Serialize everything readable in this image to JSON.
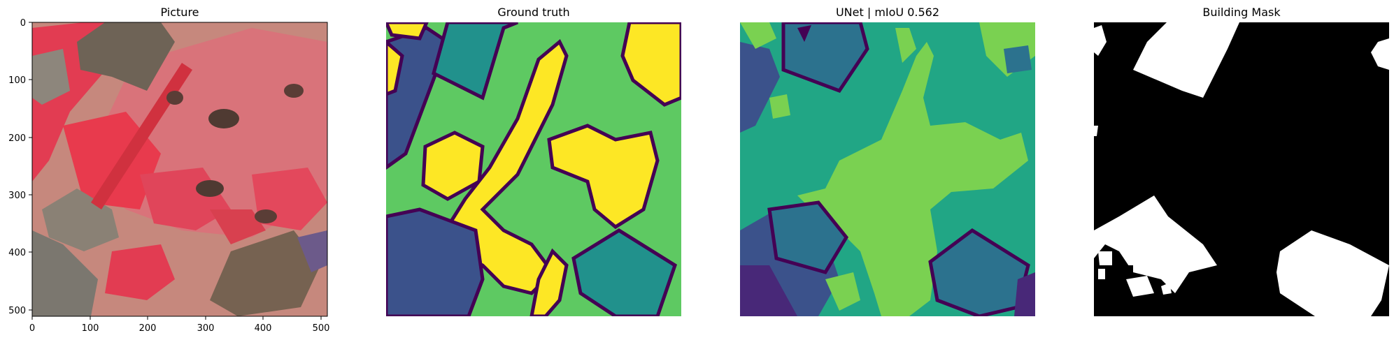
{
  "figure": {
    "panels": [
      {
        "title": "Picture",
        "kind": "image-with-axes"
      },
      {
        "title": "Ground truth",
        "kind": "segmentation"
      },
      {
        "title": "UNet | mIoU 0.562",
        "kind": "segmentation"
      },
      {
        "title": "Building Mask",
        "kind": "binary-mask"
      }
    ]
  },
  "palette": {
    "viridis_dark": "#440154",
    "viridis_indigo": "#3b528b",
    "viridis_blue": "#2c728e",
    "viridis_teal": "#21918c",
    "viridis_green": "#21a685",
    "viridis_light_green": "#5ec962",
    "viridis_lime": "#7ad151",
    "viridis_yellow": "#fde725",
    "mask_black": "#000000",
    "mask_white": "#ffffff",
    "photo_red": "#e83a4d",
    "photo_roof": "#7a6a5a"
  },
  "chart_data": {
    "type": "heatmap",
    "title": "Picture",
    "xlabel": "",
    "ylabel": "",
    "xlim": [
      0,
      511
    ],
    "ylim": [
      511,
      0
    ],
    "xticks": [
      0,
      100,
      200,
      300,
      400,
      500
    ],
    "yticks": [
      0,
      100,
      200,
      300,
      400,
      500
    ],
    "grid": false
  }
}
